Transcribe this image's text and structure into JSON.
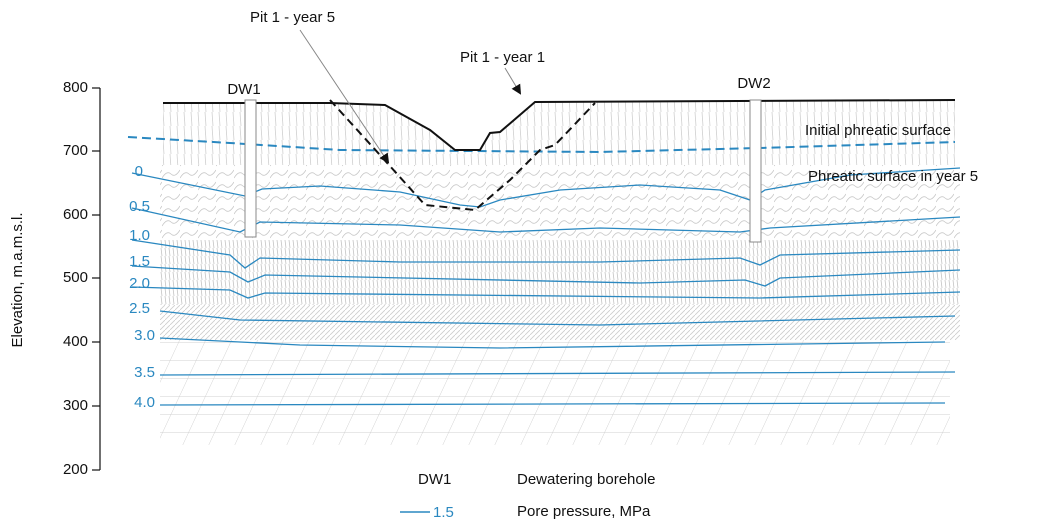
{
  "axis": {
    "label": "Elevation, m.a.m.s.l.",
    "ticks": [
      "800",
      "700",
      "600",
      "500",
      "400",
      "300",
      "200"
    ]
  },
  "boreholes": [
    "DW1",
    "DW2"
  ],
  "annotations": {
    "pit_year5": "Pit 1 - year 5",
    "pit_year1": "Pit 1 - year 1",
    "initial_phreatic": "Initial phreatic surface",
    "phreatic_year5": "Phreatic surface in year 5"
  },
  "contours": [
    "0",
    "0.5",
    "1.0",
    "1.5",
    "2.0",
    "2.5",
    "3.0",
    "3.5",
    "4.0"
  ],
  "legend": {
    "borehole_symbol": "DW1",
    "borehole_text": "Dewatering borehole",
    "pressure_symbol": "1.5",
    "pressure_text": "Pore pressure, MPa"
  }
}
